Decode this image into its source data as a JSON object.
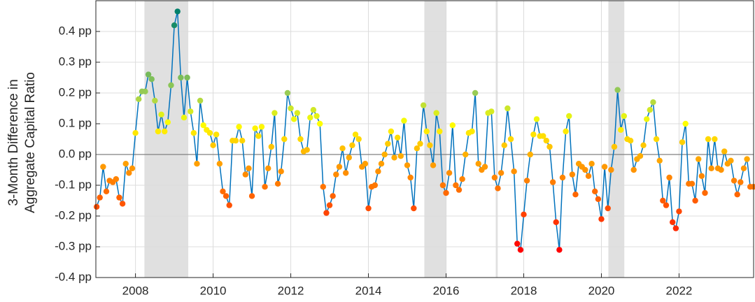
{
  "chart_data": {
    "type": "line",
    "ylabel": [
      "3-Month Difference in",
      "Aggregate Capital Ratio"
    ],
    "xlim": [
      2006.98,
      2023.92
    ],
    "ylim": [
      -0.4,
      0.5
    ],
    "xticks": [
      2008,
      2010,
      2012,
      2014,
      2016,
      2018,
      2020,
      2022
    ],
    "yticks": [
      {
        "value": -0.4,
        "label": "-0.4 pp"
      },
      {
        "value": -0.3,
        "label": "-0.3 pp"
      },
      {
        "value": -0.2,
        "label": "-0.2 pp"
      },
      {
        "value": -0.1,
        "label": "-0.1 pp"
      },
      {
        "value": 0.0,
        "label": "0.0 pp"
      },
      {
        "value": 0.1,
        "label": "0.1 pp"
      },
      {
        "value": 0.2,
        "label": "0.2 pp"
      },
      {
        "value": 0.3,
        "label": "0.3 pp"
      },
      {
        "value": 0.4,
        "label": "0.4 pp"
      }
    ],
    "grid": true,
    "hline": 0,
    "line_color": "#0072bd",
    "shade_color": "#e0e0e0",
    "shaded_periods": [
      [
        2008.23,
        2009.36
      ],
      [
        2015.44,
        2016.01
      ],
      [
        2017.28,
        2017.33
      ],
      [
        2020.18,
        2020.59
      ]
    ],
    "colormap": [
      {
        "value": -0.31,
        "color": "#ff0000"
      },
      {
        "value": 0.0,
        "color": "#ffb000"
      },
      {
        "value": 0.1,
        "color": "#ffff00"
      },
      {
        "value": 0.2,
        "color": "#99cc55"
      },
      {
        "value": 0.46,
        "color": "#00806a"
      }
    ],
    "x": [
      2007,
      2007.083,
      2007.167,
      2007.25,
      2007.333,
      2007.417,
      2007.5,
      2007.583,
      2007.667,
      2007.75,
      2007.833,
      2007.917,
      2008,
      2008.083,
      2008.167,
      2008.25,
      2008.333,
      2008.417,
      2008.5,
      2008.583,
      2008.667,
      2008.75,
      2008.833,
      2008.917,
      2009,
      2009.083,
      2009.167,
      2009.25,
      2009.333,
      2009.417,
      2009.5,
      2009.583,
      2009.667,
      2009.75,
      2009.833,
      2009.917,
      2010,
      2010.083,
      2010.167,
      2010.25,
      2010.333,
      2010.417,
      2010.5,
      2010.583,
      2010.667,
      2010.75,
      2010.833,
      2010.917,
      2011,
      2011.083,
      2011.167,
      2011.25,
      2011.333,
      2011.417,
      2011.5,
      2011.583,
      2011.667,
      2011.75,
      2011.833,
      2011.917,
      2012,
      2012.083,
      2012.167,
      2012.25,
      2012.333,
      2012.417,
      2012.5,
      2012.583,
      2012.667,
      2012.75,
      2012.833,
      2012.917,
      2013,
      2013.083,
      2013.167,
      2013.25,
      2013.333,
      2013.417,
      2013.5,
      2013.583,
      2013.667,
      2013.75,
      2013.833,
      2013.917,
      2014,
      2014.083,
      2014.167,
      2014.25,
      2014.333,
      2014.417,
      2014.5,
      2014.583,
      2014.667,
      2014.75,
      2014.833,
      2014.917,
      2015,
      2015.083,
      2015.167,
      2015.25,
      2015.333,
      2015.417,
      2015.5,
      2015.583,
      2015.667,
      2015.75,
      2015.833,
      2015.917,
      2016,
      2016.083,
      2016.167,
      2016.25,
      2016.333,
      2016.417,
      2016.5,
      2016.583,
      2016.667,
      2016.75,
      2016.833,
      2016.917,
      2017,
      2017.083,
      2017.167,
      2017.25,
      2017.333,
      2017.417,
      2017.5,
      2017.583,
      2017.667,
      2017.75,
      2017.833,
      2017.917,
      2018,
      2018.083,
      2018.167,
      2018.25,
      2018.333,
      2018.417,
      2018.5,
      2018.583,
      2018.667,
      2018.75,
      2018.833,
      2018.917,
      2019,
      2019.083,
      2019.167,
      2019.25,
      2019.333,
      2019.417,
      2019.5,
      2019.583,
      2019.667,
      2019.75,
      2019.833,
      2019.917,
      2020,
      2020.083,
      2020.167,
      2020.25,
      2020.333,
      2020.417,
      2020.5,
      2020.583,
      2020.667,
      2020.75,
      2020.833,
      2020.917,
      2021,
      2021.083,
      2021.167,
      2021.25,
      2021.333,
      2021.417,
      2021.5,
      2021.583,
      2021.667,
      2021.75,
      2021.833,
      2021.917,
      2022,
      2022.083,
      2022.167,
      2022.25,
      2022.333,
      2022.417,
      2022.5,
      2022.583,
      2022.667,
      2022.75,
      2022.833,
      2022.917,
      2023,
      2023.083,
      2023.167,
      2023.25,
      2023.333,
      2023.417,
      2023.5,
      2023.583,
      2023.667,
      2023.75,
      2023.833,
      2023.917
    ],
    "values": [
      -0.17,
      -0.14,
      -0.04,
      -0.12,
      -0.085,
      -0.09,
      -0.08,
      -0.14,
      -0.16,
      -0.03,
      -0.06,
      -0.045,
      0.07,
      0.18,
      0.205,
      0.205,
      0.26,
      0.245,
      0.175,
      0.075,
      0.13,
      0.075,
      0.105,
      0.225,
      0.42,
      0.465,
      0.25,
      0.12,
      0.25,
      0.14,
      0.07,
      -0.03,
      0.175,
      0.095,
      0.08,
      0.07,
      0.03,
      0.065,
      -0.03,
      -0.12,
      -0.135,
      -0.165,
      0.045,
      0.045,
      0.09,
      0.045,
      -0.065,
      -0.045,
      -0.135,
      0.085,
      0.06,
      0.09,
      -0.105,
      -0.045,
      0.025,
      0.135,
      -0.095,
      -0.055,
      0.05,
      0.2,
      0.15,
      0.115,
      0.135,
      0.05,
      0.01,
      0.015,
      0.12,
      0.145,
      0.125,
      0.1,
      -0.105,
      -0.19,
      -0.165,
      -0.135,
      -0.065,
      -0.04,
      0.02,
      -0.06,
      -0.01,
      0.03,
      0.065,
      0.05,
      -0.04,
      -0.03,
      -0.175,
      -0.105,
      -0.1,
      -0.055,
      -0.03,
      0.0,
      0.035,
      0.075,
      -0.01,
      0.055,
      -0.005,
      0.11,
      -0.035,
      -0.075,
      -0.175,
      0.02,
      0.035,
      0.16,
      0.075,
      0.03,
      -0.035,
      0.135,
      0.075,
      -0.1,
      -0.125,
      -0.06,
      0.095,
      -0.1,
      -0.115,
      -0.08,
      0.0,
      0.07,
      0.075,
      0.2,
      -0.03,
      -0.05,
      -0.04,
      0.135,
      0.14,
      -0.075,
      -0.11,
      -0.06,
      0.03,
      0.15,
      0.05,
      -0.055,
      -0.29,
      -0.31,
      -0.195,
      -0.085,
      0.0,
      0.065,
      0.115,
      0.06,
      0.06,
      0.045,
      0.025,
      -0.09,
      -0.22,
      -0.31,
      -0.075,
      0.075,
      0.125,
      -0.065,
      -0.13,
      -0.03,
      -0.04,
      -0.05,
      -0.07,
      -0.03,
      -0.12,
      -0.145,
      -0.21,
      -0.04,
      -0.175,
      -0.05,
      0.025,
      0.21,
      0.08,
      0.125,
      0.05,
      0.045,
      -0.05,
      -0.015,
      -0.005,
      0.03,
      0.115,
      0.145,
      0.17,
      0.05,
      -0.02,
      -0.15,
      -0.165,
      -0.075,
      -0.22,
      -0.24,
      -0.185,
      0.04,
      0.1,
      -0.095,
      -0.095,
      -0.15,
      -0.015,
      -0.07,
      -0.125,
      0.05,
      -0.045,
      0.05,
      -0.045,
      -0.05,
      0.01,
      -0.03,
      -0.02,
      -0.085,
      -0.13,
      -0.09,
      -0.045,
      -0.015,
      -0.105,
      -0.105
    ]
  }
}
